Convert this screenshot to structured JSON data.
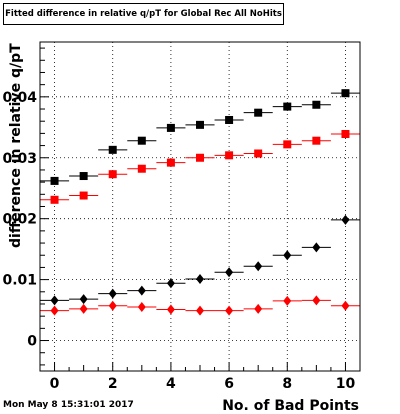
{
  "window": {
    "title": "Fitted difference in relative q/pT  for Global Rec All NoHits",
    "timestamp": "Mon May  8 15:31:01 2017"
  },
  "chart_data": {
    "type": "scatter",
    "title": "Fitted difference in relative q/pT  for Global Rec All NoHits",
    "xlabel": "No. of Bad Points",
    "ylabel": "difference in relative q/pT",
    "xlim": [
      -0.5,
      10.5
    ],
    "ylim": [
      -0.005,
      0.049
    ],
    "grid": true,
    "x_ticks": [
      0,
      2,
      4,
      6,
      8,
      10
    ],
    "x_tick_labels": [
      "0",
      "2",
      "4",
      "6",
      "8",
      "10"
    ],
    "y_ticks": [
      0,
      0.01,
      0.02,
      0.03,
      0.04
    ],
    "y_tick_labels": [
      "0",
      "0.01",
      "0.02",
      "0.03",
      "0.04"
    ],
    "x": [
      0,
      1,
      2,
      3,
      4,
      5,
      6,
      7,
      8,
      9,
      10
    ],
    "series": [
      {
        "marker": "square",
        "color": "#000000",
        "values": [
          0.0262,
          0.027,
          0.0313,
          0.0328,
          0.0349,
          0.0354,
          0.0362,
          0.0374,
          0.0384,
          0.0387,
          0.0406
        ]
      },
      {
        "marker": "square",
        "color": "#ff0000",
        "values": [
          0.0231,
          0.0238,
          0.0273,
          0.0282,
          0.0292,
          0.03,
          0.0304,
          0.0307,
          0.0322,
          0.0328,
          0.0339
        ]
      },
      {
        "marker": "diamond",
        "color": "#000000",
        "values": [
          0.0066,
          0.0068,
          0.0077,
          0.0082,
          0.0094,
          0.0101,
          0.0112,
          0.0122,
          0.014,
          0.0153,
          0.0198
        ]
      },
      {
        "marker": "diamond",
        "color": "#ff0000",
        "values": [
          0.0049,
          0.0052,
          0.0057,
          0.0055,
          0.0051,
          0.0049,
          0.0049,
          0.0052,
          0.0065,
          0.0066,
          0.0057
        ]
      }
    ]
  }
}
